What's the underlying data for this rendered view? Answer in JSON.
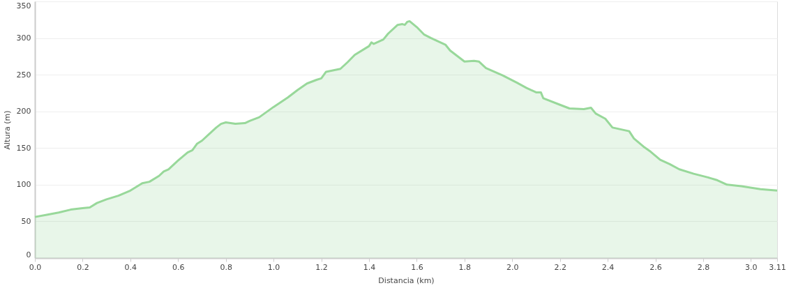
{
  "chart_data": {
    "type": "area",
    "xlabel": "Distancia   (km)",
    "ylabel": "Altura (m)",
    "x": [
      0.0,
      0.05,
      0.1,
      0.15,
      0.2,
      0.23,
      0.26,
      0.3,
      0.35,
      0.4,
      0.45,
      0.48,
      0.52,
      0.54,
      0.56,
      0.6,
      0.64,
      0.66,
      0.68,
      0.7,
      0.74,
      0.76,
      0.78,
      0.8,
      0.84,
      0.88,
      0.9,
      0.94,
      1.0,
      1.06,
      1.1,
      1.14,
      1.18,
      1.2,
      1.22,
      1.28,
      1.31,
      1.34,
      1.4,
      1.41,
      1.42,
      1.46,
      1.48,
      1.52,
      1.54,
      1.55,
      1.56,
      1.57,
      1.6,
      1.63,
      1.66,
      1.72,
      1.74,
      1.8,
      1.84,
      1.86,
      1.89,
      1.96,
      2.02,
      2.06,
      2.1,
      2.12,
      2.13,
      2.2,
      2.24,
      2.3,
      2.33,
      2.35,
      2.39,
      2.42,
      2.49,
      2.51,
      2.55,
      2.58,
      2.62,
      2.66,
      2.7,
      2.76,
      2.82,
      2.86,
      2.9,
      2.96,
      3.04,
      3.11
    ],
    "series": [
      {
        "color": "#98d89a",
        "values": [
          56,
          59,
          62,
          66,
          68,
          69,
          75,
          80,
          85,
          92,
          102,
          104,
          112,
          118,
          121,
          133,
          144,
          147,
          156,
          160,
          172,
          178,
          183,
          185,
          183,
          184,
          187,
          192,
          206,
          219,
          229,
          238,
          243,
          245,
          254,
          258,
          267,
          277,
          289,
          294,
          292,
          298,
          306,
          318,
          319,
          318,
          322,
          323,
          315,
          305,
          300,
          291,
          283,
          268,
          269,
          268,
          259,
          249,
          239,
          232,
          226,
          226,
          218,
          209,
          204,
          203,
          205,
          197,
          190,
          178,
          173,
          163,
          152,
          145,
          134,
          128,
          121,
          115,
          110,
          106,
          100,
          98,
          94,
          92
        ]
      }
    ],
    "xlim": [
      0,
      3.11
    ],
    "xticks": [
      {
        "value": 0,
        "label": "0.0"
      },
      0.2,
      0.4,
      0.6,
      0.8,
      {
        "value": 1,
        "label": "1.0"
      },
      1.2,
      1.4,
      1.6,
      1.8,
      {
        "value": 2,
        "label": "2.0"
      },
      2.2,
      2.4,
      2.6,
      2.8,
      {
        "value": 3,
        "label": "3.0"
      },
      3.11
    ],
    "ylim": [
      0,
      350
    ],
    "yticks": [
      0,
      50,
      100,
      150,
      200,
      250,
      300,
      350
    ],
    "grid": "y",
    "line_style": "solid"
  }
}
